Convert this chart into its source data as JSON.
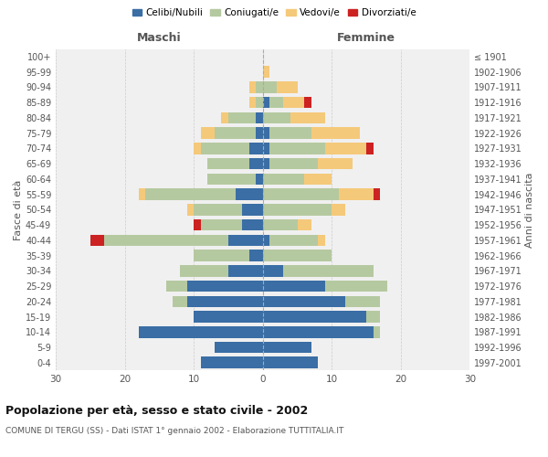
{
  "age_groups": [
    "0-4",
    "5-9",
    "10-14",
    "15-19",
    "20-24",
    "25-29",
    "30-34",
    "35-39",
    "40-44",
    "45-49",
    "50-54",
    "55-59",
    "60-64",
    "65-69",
    "70-74",
    "75-79",
    "80-84",
    "85-89",
    "90-94",
    "95-99",
    "100+"
  ],
  "birth_years": [
    "1997-2001",
    "1992-1996",
    "1987-1991",
    "1982-1986",
    "1977-1981",
    "1972-1976",
    "1967-1971",
    "1962-1966",
    "1957-1961",
    "1952-1956",
    "1947-1951",
    "1942-1946",
    "1937-1941",
    "1932-1936",
    "1927-1931",
    "1922-1926",
    "1917-1921",
    "1912-1916",
    "1907-1911",
    "1902-1906",
    "≤ 1901"
  ],
  "maschi": {
    "celibi": [
      9,
      7,
      18,
      10,
      11,
      11,
      5,
      2,
      5,
      3,
      3,
      4,
      1,
      2,
      2,
      1,
      1,
      0,
      0,
      0,
      0
    ],
    "coniugati": [
      0,
      0,
      0,
      0,
      2,
      3,
      7,
      8,
      18,
      6,
      7,
      13,
      7,
      6,
      7,
      6,
      4,
      1,
      1,
      0,
      0
    ],
    "vedovi": [
      0,
      0,
      0,
      0,
      0,
      0,
      0,
      0,
      0,
      0,
      1,
      1,
      0,
      0,
      1,
      2,
      1,
      1,
      1,
      0,
      0
    ],
    "divorziati": [
      0,
      0,
      0,
      0,
      0,
      0,
      0,
      0,
      2,
      1,
      0,
      0,
      0,
      0,
      0,
      0,
      0,
      0,
      0,
      0,
      0
    ]
  },
  "femmine": {
    "nubili": [
      8,
      7,
      16,
      15,
      12,
      9,
      3,
      0,
      1,
      0,
      0,
      0,
      0,
      1,
      1,
      1,
      0,
      1,
      0,
      0,
      0
    ],
    "coniugate": [
      0,
      0,
      1,
      2,
      5,
      9,
      13,
      10,
      7,
      5,
      10,
      11,
      6,
      7,
      8,
      6,
      4,
      2,
      2,
      0,
      0
    ],
    "vedove": [
      0,
      0,
      0,
      0,
      0,
      0,
      0,
      0,
      1,
      2,
      2,
      5,
      4,
      5,
      6,
      7,
      5,
      3,
      3,
      1,
      0
    ],
    "divorziate": [
      0,
      0,
      0,
      0,
      0,
      0,
      0,
      0,
      0,
      0,
      0,
      1,
      0,
      0,
      1,
      0,
      0,
      1,
      0,
      0,
      0
    ]
  },
  "colors": {
    "celibi": "#3a6ea5",
    "coniugati": "#b5c9a0",
    "vedovi": "#f5c97a",
    "divorziati": "#cc2222"
  },
  "xlim": 30,
  "title": "Popolazione per età, sesso e stato civile - 2002",
  "subtitle": "COMUNE DI TERGU (SS) - Dati ISTAT 1° gennaio 2002 - Elaborazione TUTTITALIA.IT",
  "ylabel": "Fasce di età",
  "ylabel_right": "Anni di nascita",
  "maschi_label": "Maschi",
  "femmine_label": "Femmine",
  "legend_labels": [
    "Celibi/Nubili",
    "Coniugati/e",
    "Vedovi/e",
    "Divorziati/e"
  ],
  "background_color": "#ffffff",
  "plot_bg_color": "#f0f0f0",
  "grid_color": "#cccccc"
}
